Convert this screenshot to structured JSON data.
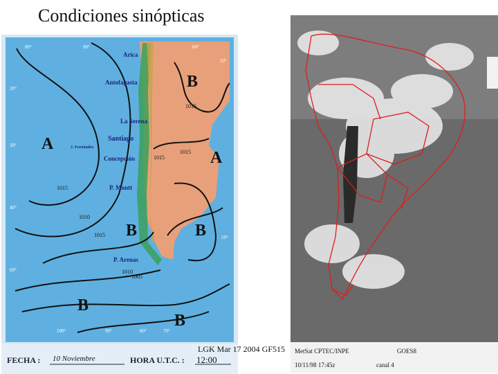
{
  "slide": {
    "title": "Condiciones sinópticas",
    "footer": "LGK Mar 17 2004 GF515"
  },
  "left_map": {
    "cities": [
      "Arica",
      "Antofagasta",
      "La Serena",
      "Santiago",
      "Concepción",
      "P. Montt",
      "P. Arenas",
      "J. Fernández"
    ],
    "pressure_centers": [
      "B",
      "A",
      "A",
      "B",
      "B",
      "B",
      "B"
    ],
    "isobars": [
      "1015",
      "1015",
      "1015",
      "1015",
      "1010",
      "1015",
      "1010",
      "1005"
    ],
    "latitudes": [
      "20°",
      "30°",
      "40°",
      "50°",
      "60°"
    ],
    "longitudes": [
      "80°",
      "90°",
      "100°",
      "90°",
      "80°",
      "70°",
      "60°",
      "50°"
    ],
    "fecha_label": "FECHA :",
    "fecha_value": "10 Noviembre",
    "hora_label": "HORA U.T.C. :",
    "hora_value": "12:00",
    "colors": {
      "ocean": "#5fb0e0",
      "land": "#e8a07a",
      "coast": "#3aa05a",
      "frame": "#9bc8e6"
    }
  },
  "right_map": {
    "caption_left": "MetSat CPTEC/INPE",
    "caption_right": "GOES8",
    "caption_date": "10/11/98 17:45z",
    "caption_channel": "canal 4",
    "colors": {
      "border": "#e21b1b",
      "bg": "#6a6a6a"
    }
  }
}
